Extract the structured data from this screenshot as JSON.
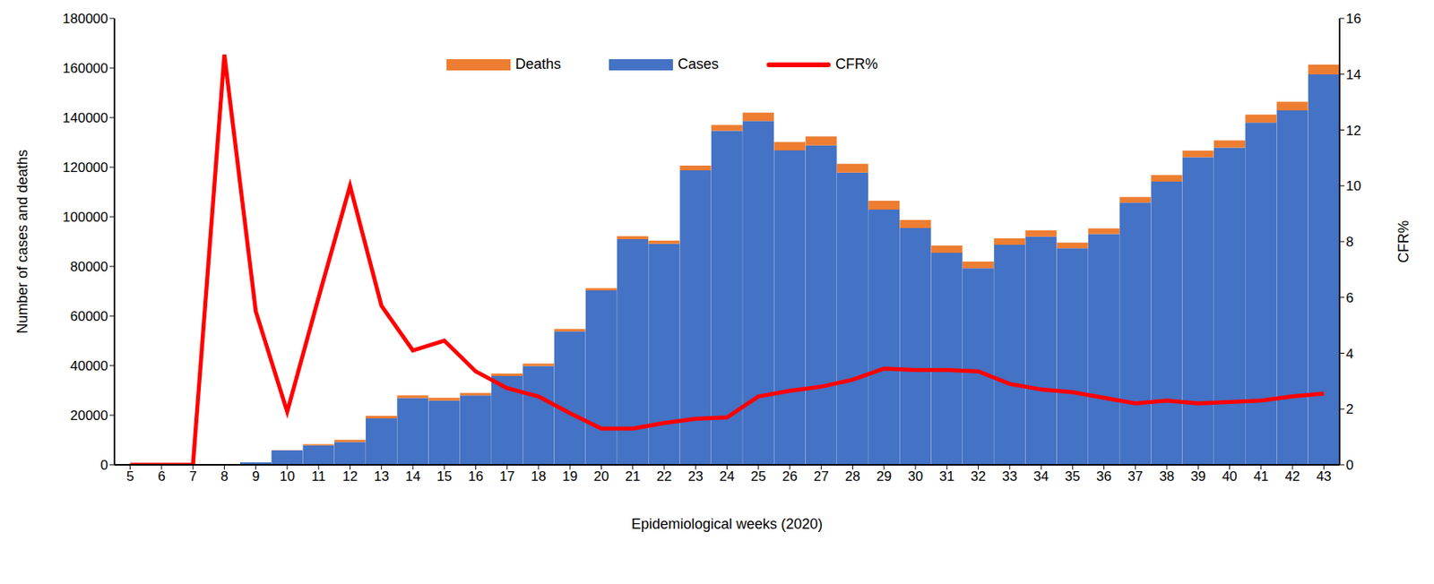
{
  "chart_data": {
    "type": "bar",
    "stacked": true,
    "legend": "top",
    "x_label": "Epidemiological weeks (2020)",
    "y_label": "Number of cases and deaths",
    "y2_label": "CFR%",
    "categories": [
      "5",
      "6",
      "7",
      "8",
      "9",
      "10",
      "11",
      "12",
      "13",
      "14",
      "15",
      "16",
      "17",
      "18",
      "19",
      "20",
      "21",
      "22",
      "23",
      "24",
      "25",
      "26",
      "27",
      "28",
      "29",
      "30",
      "31",
      "32",
      "33",
      "34",
      "35",
      "36",
      "37",
      "38",
      "39",
      "40",
      "41",
      "42",
      "43"
    ],
    "ylim": [
      0,
      180000
    ],
    "yticks": [
      0,
      20000,
      40000,
      60000,
      80000,
      100000,
      120000,
      140000,
      160000,
      180000
    ],
    "y2lim": [
      0,
      16
    ],
    "y2ticks": [
      0,
      2,
      4,
      6,
      8,
      10,
      12,
      14,
      16
    ],
    "series": [
      {
        "name": "Deaths",
        "type": "bar",
        "color": "#ed7d31",
        "values": [
          0,
          0,
          0,
          44,
          52,
          110,
          470,
          920,
          1060,
          1100,
          1150,
          940,
          985,
          975,
          995,
          915,
          1180,
          1340,
          1960,
          2290,
          3400,
          3360,
          3600,
          3590,
          3550,
          3250,
          2900,
          2650,
          2570,
          2480,
          2270,
          2230,
          2320,
          2630,
          2730,
          2880,
          3170,
          3500,
          4010
        ]
      },
      {
        "name": "Cases",
        "type": "bar",
        "color": "#4472c4",
        "values": [
          0,
          0,
          0,
          300,
          950,
          5800,
          7800,
          9200,
          18700,
          26900,
          25900,
          28000,
          35800,
          39800,
          53800,
          70300,
          91000,
          89100,
          118700,
          134700,
          138600,
          126800,
          128800,
          117800,
          102900,
          95500,
          85500,
          79300,
          88700,
          92000,
          87300,
          93100,
          105700,
          114200,
          124000,
          127900,
          138000,
          142900,
          157400
        ]
      },
      {
        "name": "CFR%",
        "type": "line",
        "axis": "y2",
        "color": "#ff0000",
        "values": [
          0,
          0,
          0,
          14.7,
          5.5,
          1.9,
          6,
          10,
          5.7,
          4.1,
          4.45,
          3.35,
          2.75,
          2.45,
          1.85,
          1.3,
          1.3,
          1.5,
          1.65,
          1.7,
          2.45,
          2.65,
          2.8,
          3.05,
          3.45,
          3.4,
          3.4,
          3.35,
          2.9,
          2.7,
          2.6,
          2.4,
          2.2,
          2.3,
          2.2,
          2.25,
          2.3,
          2.45,
          2.55
        ]
      }
    ]
  }
}
